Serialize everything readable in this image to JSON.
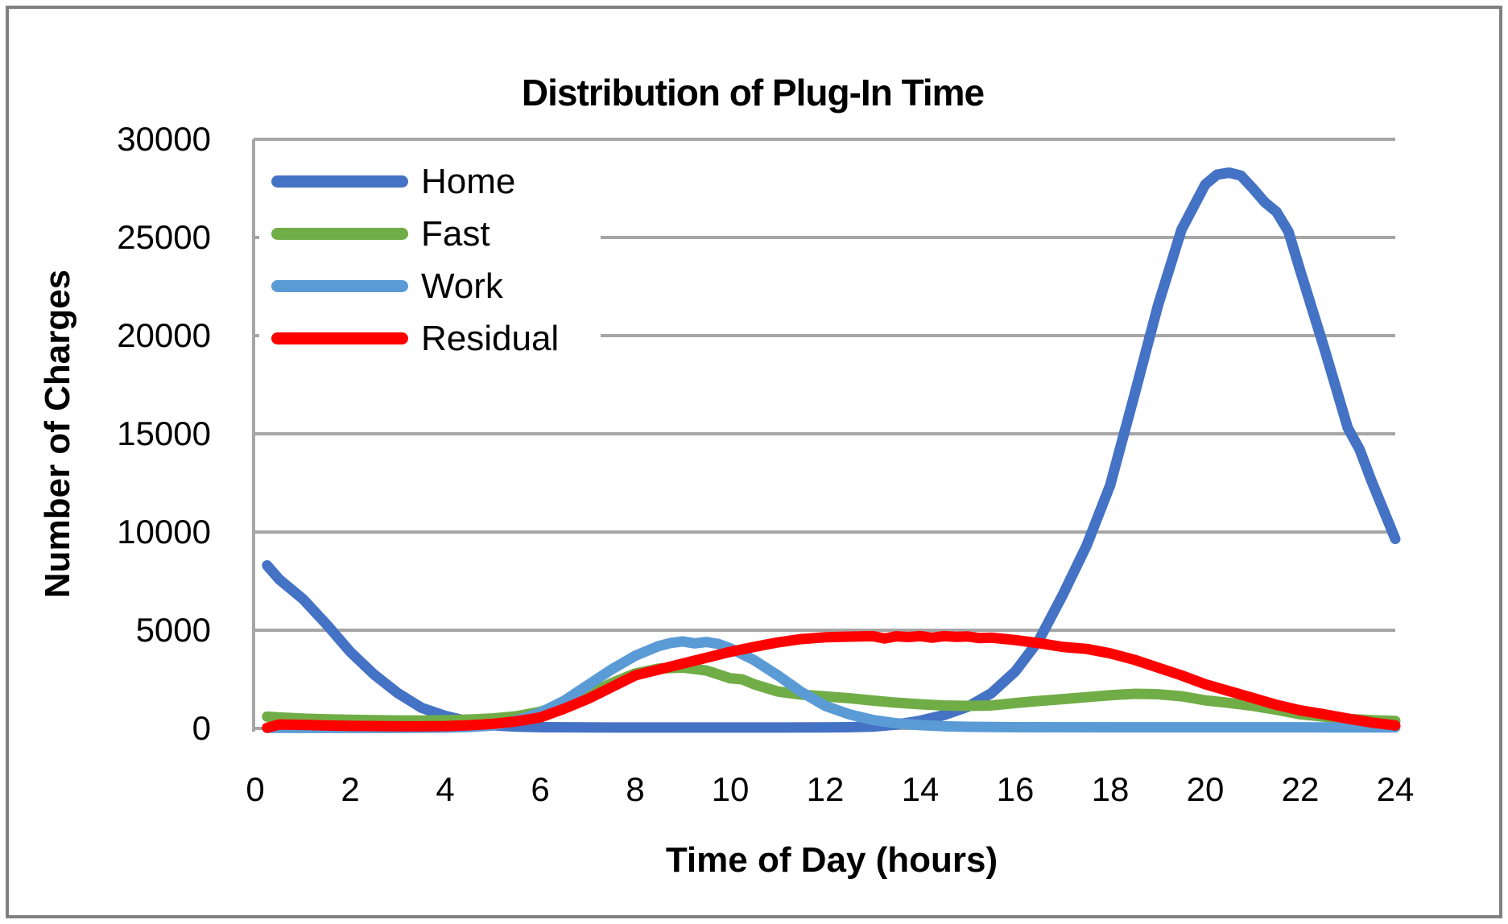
{
  "chart": {
    "title": "Distribution of Plug-In Time",
    "xlabel": "Time of Day (hours)",
    "ylabel": "Number of Charges"
  },
  "chart_data": {
    "type": "line",
    "title": "Distribution of Plug-In Time",
    "xlabel": "Time of Day (hours)",
    "ylabel": "Number of Charges",
    "xlim": [
      0,
      24
    ],
    "ylim": [
      0,
      30000
    ],
    "x_ticks": [
      0,
      2,
      4,
      6,
      8,
      10,
      12,
      14,
      16,
      18,
      20,
      22,
      24
    ],
    "y_ticks": [
      0,
      5000,
      10000,
      15000,
      20000,
      25000,
      30000
    ],
    "grid": "horizontal",
    "legend_position": "top-left-inside",
    "colors": {
      "gridline": "#A6A6A6",
      "axis": "#A6A6A6",
      "frame": "#808080",
      "background": "#FFFFFF",
      "text": "#000000"
    },
    "series": [
      {
        "name": "Home",
        "color": "#4472C4",
        "points": [
          [
            0.25,
            8300
          ],
          [
            0.5,
            7600
          ],
          [
            1,
            6600
          ],
          [
            1.5,
            5300
          ],
          [
            2,
            3900
          ],
          [
            2.5,
            2750
          ],
          [
            3,
            1800
          ],
          [
            3.5,
            1050
          ],
          [
            4,
            640
          ],
          [
            4.5,
            350
          ],
          [
            5,
            160
          ],
          [
            5.5,
            90
          ],
          [
            6,
            60
          ],
          [
            7,
            50
          ],
          [
            8,
            45
          ],
          [
            9,
            45
          ],
          [
            10,
            45
          ],
          [
            11,
            45
          ],
          [
            12,
            50
          ],
          [
            12.5,
            60
          ],
          [
            13,
            90
          ],
          [
            13.5,
            200
          ],
          [
            14,
            390
          ],
          [
            14.5,
            680
          ],
          [
            15,
            1100
          ],
          [
            15.5,
            1800
          ],
          [
            16,
            2900
          ],
          [
            16.5,
            4500
          ],
          [
            17,
            6800
          ],
          [
            17.5,
            9300
          ],
          [
            18,
            12400
          ],
          [
            18.5,
            16900
          ],
          [
            19,
            21500
          ],
          [
            19.5,
            25400
          ],
          [
            20,
            27700
          ],
          [
            20.25,
            28200
          ],
          [
            20.5,
            28300
          ],
          [
            20.75,
            28150
          ],
          [
            21,
            27500
          ],
          [
            21.25,
            26800
          ],
          [
            21.5,
            26300
          ],
          [
            21.75,
            25300
          ],
          [
            22,
            23300
          ],
          [
            22.5,
            19400
          ],
          [
            23,
            15300
          ],
          [
            23.25,
            14200
          ],
          [
            23.5,
            12600
          ],
          [
            24,
            9650
          ]
        ]
      },
      {
        "name": "Fast",
        "color": "#70AD47",
        "points": [
          [
            0.25,
            600
          ],
          [
            0.5,
            560
          ],
          [
            1,
            500
          ],
          [
            1.5,
            465
          ],
          [
            2,
            440
          ],
          [
            2.5,
            420
          ],
          [
            3,
            405
          ],
          [
            3.5,
            400
          ],
          [
            4,
            415
          ],
          [
            4.5,
            450
          ],
          [
            5,
            510
          ],
          [
            5.5,
            620
          ],
          [
            6,
            850
          ],
          [
            6.5,
            1250
          ],
          [
            7,
            1700
          ],
          [
            7.5,
            2300
          ],
          [
            8,
            2800
          ],
          [
            8.5,
            3050
          ],
          [
            9,
            3100
          ],
          [
            9.5,
            2950
          ],
          [
            10,
            2550
          ],
          [
            10.25,
            2500
          ],
          [
            10.5,
            2250
          ],
          [
            11,
            1880
          ],
          [
            11.5,
            1720
          ],
          [
            12,
            1630
          ],
          [
            12.5,
            1540
          ],
          [
            13,
            1420
          ],
          [
            13.5,
            1310
          ],
          [
            14,
            1230
          ],
          [
            14.5,
            1170
          ],
          [
            15,
            1150
          ],
          [
            15.5,
            1170
          ],
          [
            16,
            1290
          ],
          [
            16.5,
            1400
          ],
          [
            17,
            1490
          ],
          [
            17.5,
            1590
          ],
          [
            18,
            1690
          ],
          [
            18.5,
            1760
          ],
          [
            19,
            1740
          ],
          [
            19.5,
            1640
          ],
          [
            20,
            1430
          ],
          [
            20.5,
            1300
          ],
          [
            21,
            1150
          ],
          [
            21.5,
            950
          ],
          [
            22,
            720
          ],
          [
            22.5,
            600
          ],
          [
            23,
            480
          ],
          [
            23.5,
            420
          ],
          [
            24,
            380
          ]
        ]
      },
      {
        "name": "Work",
        "color": "#5B9BD5",
        "points": [
          [
            0.25,
            30
          ],
          [
            1,
            25
          ],
          [
            2,
            25
          ],
          [
            3,
            25
          ],
          [
            4,
            40
          ],
          [
            4.5,
            70
          ],
          [
            5,
            150
          ],
          [
            5.5,
            400
          ],
          [
            6,
            800
          ],
          [
            6.5,
            1400
          ],
          [
            7,
            2200
          ],
          [
            7.5,
            3000
          ],
          [
            8,
            3700
          ],
          [
            8.5,
            4200
          ],
          [
            8.75,
            4350
          ],
          [
            9,
            4430
          ],
          [
            9.25,
            4330
          ],
          [
            9.5,
            4400
          ],
          [
            9.75,
            4300
          ],
          [
            10,
            4080
          ],
          [
            10.5,
            3480
          ],
          [
            11,
            2700
          ],
          [
            11.5,
            1850
          ],
          [
            12,
            1150
          ],
          [
            12.5,
            720
          ],
          [
            13,
            430
          ],
          [
            13.5,
            260
          ],
          [
            14,
            170
          ],
          [
            14.5,
            110
          ],
          [
            15,
            80
          ],
          [
            16,
            60
          ],
          [
            18,
            55
          ],
          [
            20,
            55
          ],
          [
            22,
            55
          ],
          [
            24,
            50
          ]
        ]
      },
      {
        "name": "Residual",
        "color": "#FF0000",
        "points": [
          [
            0.25,
            30
          ],
          [
            0.5,
            200
          ],
          [
            1,
            180
          ],
          [
            1.5,
            150
          ],
          [
            2,
            130
          ],
          [
            2.5,
            120
          ],
          [
            3,
            110
          ],
          [
            3.5,
            110
          ],
          [
            4,
            120
          ],
          [
            4.5,
            160
          ],
          [
            5,
            230
          ],
          [
            5.5,
            360
          ],
          [
            6,
            560
          ],
          [
            6.5,
            1000
          ],
          [
            7,
            1500
          ],
          [
            7.5,
            2100
          ],
          [
            8,
            2700
          ],
          [
            8.5,
            3000
          ],
          [
            9,
            3300
          ],
          [
            9.5,
            3600
          ],
          [
            10,
            3900
          ],
          [
            10.5,
            4150
          ],
          [
            11,
            4380
          ],
          [
            11.5,
            4550
          ],
          [
            12,
            4640
          ],
          [
            12.5,
            4670
          ],
          [
            13,
            4700
          ],
          [
            13.25,
            4580
          ],
          [
            13.5,
            4690
          ],
          [
            13.75,
            4650
          ],
          [
            14,
            4700
          ],
          [
            14.25,
            4620
          ],
          [
            14.5,
            4700
          ],
          [
            14.75,
            4660
          ],
          [
            15,
            4680
          ],
          [
            15.25,
            4600
          ],
          [
            15.5,
            4620
          ],
          [
            16,
            4500
          ],
          [
            16.5,
            4340
          ],
          [
            17,
            4150
          ],
          [
            17.25,
            4100
          ],
          [
            17.5,
            4050
          ],
          [
            18,
            3820
          ],
          [
            18.5,
            3500
          ],
          [
            19,
            3100
          ],
          [
            19.5,
            2700
          ],
          [
            20,
            2250
          ],
          [
            20.5,
            1900
          ],
          [
            21,
            1550
          ],
          [
            21.5,
            1200
          ],
          [
            22,
            920
          ],
          [
            22.5,
            720
          ],
          [
            23,
            500
          ],
          [
            23.5,
            300
          ],
          [
            24,
            150
          ]
        ]
      }
    ]
  }
}
